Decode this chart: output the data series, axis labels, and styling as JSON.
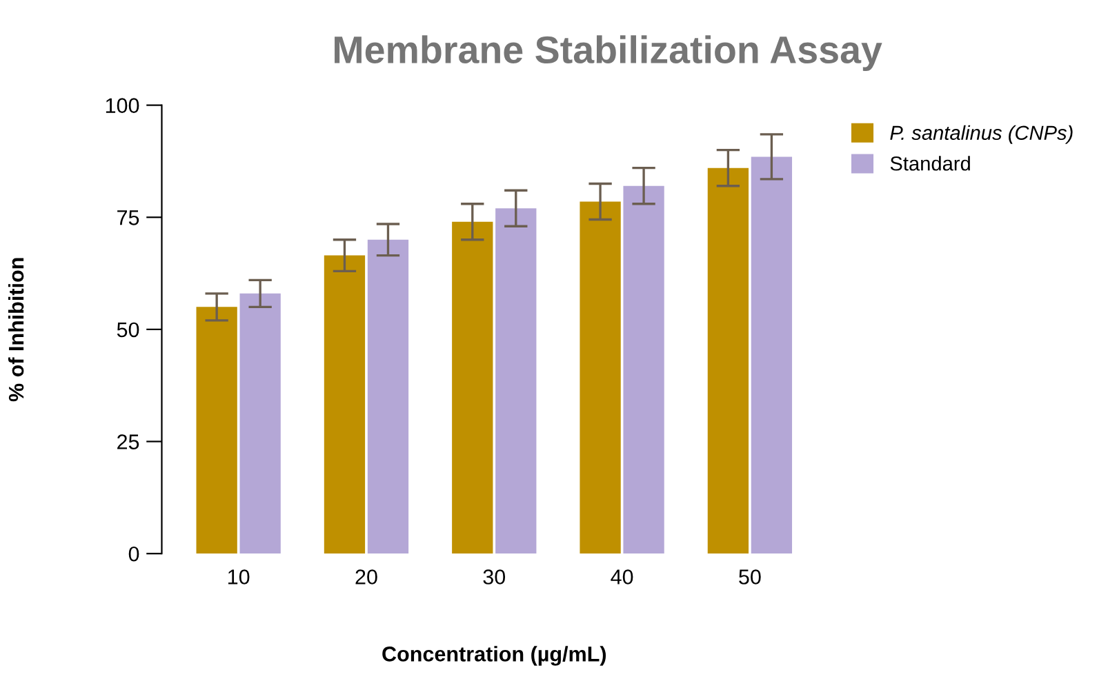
{
  "chart_data": {
    "type": "bar",
    "title": "Membrane Stabilization Assay",
    "xlabel": "Concentration (µg/mL)",
    "ylabel": "% of Inhibition",
    "categories": [
      "10",
      "20",
      "30",
      "40",
      "50"
    ],
    "series": [
      {
        "name": "P. santalinus (CNPs)",
        "color": "#bf9000",
        "values": [
          55,
          66.5,
          74,
          78.5,
          86
        ],
        "errors": [
          3,
          3.5,
          4,
          4,
          4
        ]
      },
      {
        "name": "Standard",
        "color": "#b4a7d6",
        "values": [
          58,
          70,
          77,
          82,
          88.5
        ],
        "errors": [
          3,
          3.5,
          4,
          4,
          5
        ]
      }
    ],
    "ylim": [
      0,
      100
    ],
    "yticks": [
      0,
      25,
      50,
      75,
      100
    ],
    "grid": false,
    "legend": "top right"
  }
}
